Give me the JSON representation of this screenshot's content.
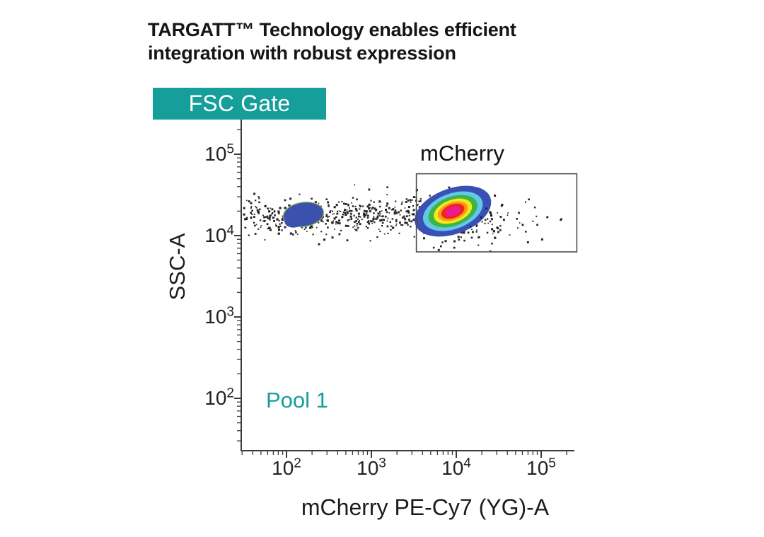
{
  "title": {
    "line1": "TARGATT™ Technology enables efficient",
    "line2": "integration with robust expression"
  },
  "colors": {
    "brand_teal": "#169e9b",
    "ink": "#151515",
    "axis": "#3a3a3a",
    "tick_label": "#222222",
    "gate_stroke": "#4d4d4d",
    "dot": "#141414"
  },
  "chart_data": {
    "type": "scatter",
    "subtype": "flow-cytometry-pseudocolor-density",
    "title": "FSC Gate",
    "xlabel": "mCherry PE-Cy7 (YG)-A",
    "ylabel": "SSC-A",
    "x_scale": "log",
    "y_scale": "log",
    "x_tick_exponents": [
      2,
      3,
      4,
      5
    ],
    "y_tick_exponents": [
      5,
      4,
      3,
      2
    ],
    "x_range_log": [
      1.47,
      5.39
    ],
    "y_range_log": [
      1.36,
      5.43
    ],
    "grid": false,
    "pool_label": "Pool 1",
    "gate": {
      "label": "mCherry",
      "x_log": [
        3.53,
        5.42
      ],
      "y_log": [
        3.8,
        4.76
      ]
    },
    "populations": [
      {
        "name": "autofluorescence-negative",
        "style": "solid-blob",
        "color": "#3c50ae",
        "edge_color": "#a8cf3e",
        "center_log": [
          2.2,
          4.26
        ],
        "spread_log": [
          0.24,
          0.15
        ],
        "tilt_deg": -8
      },
      {
        "name": "mCherry-positive",
        "style": "density-rings",
        "center_log": [
          3.96,
          4.3
        ],
        "spread_log": [
          0.47,
          0.28
        ],
        "tilt_deg": -20,
        "ring_colors": [
          "#3a50b4",
          "#62c8e8",
          "#3cb44a",
          "#f5e915",
          "#f8981d",
          "#ee2424",
          "#ea1c8f"
        ]
      }
    ],
    "scatter_noise": [
      {
        "count": 520,
        "x_log_uniform": [
          1.5,
          3.78
        ],
        "y_log_mean": 4.24,
        "y_log_sd": 0.11
      },
      {
        "count": 140,
        "x_log_mean": 4.02,
        "x_log_sd": 0.26,
        "y_log_mean": 4.18,
        "y_log_sd": 0.12
      },
      {
        "count": 22,
        "x_log_uniform": [
          4.35,
          5.25
        ],
        "y_log_mean": 4.12,
        "y_log_sd": 0.14
      },
      {
        "count": 70,
        "x_log_mean": 3.96,
        "x_log_sd": 0.3,
        "y_log_mean": 4.26,
        "y_log_sd": 0.14,
        "draw_over_rings": true
      }
    ]
  }
}
